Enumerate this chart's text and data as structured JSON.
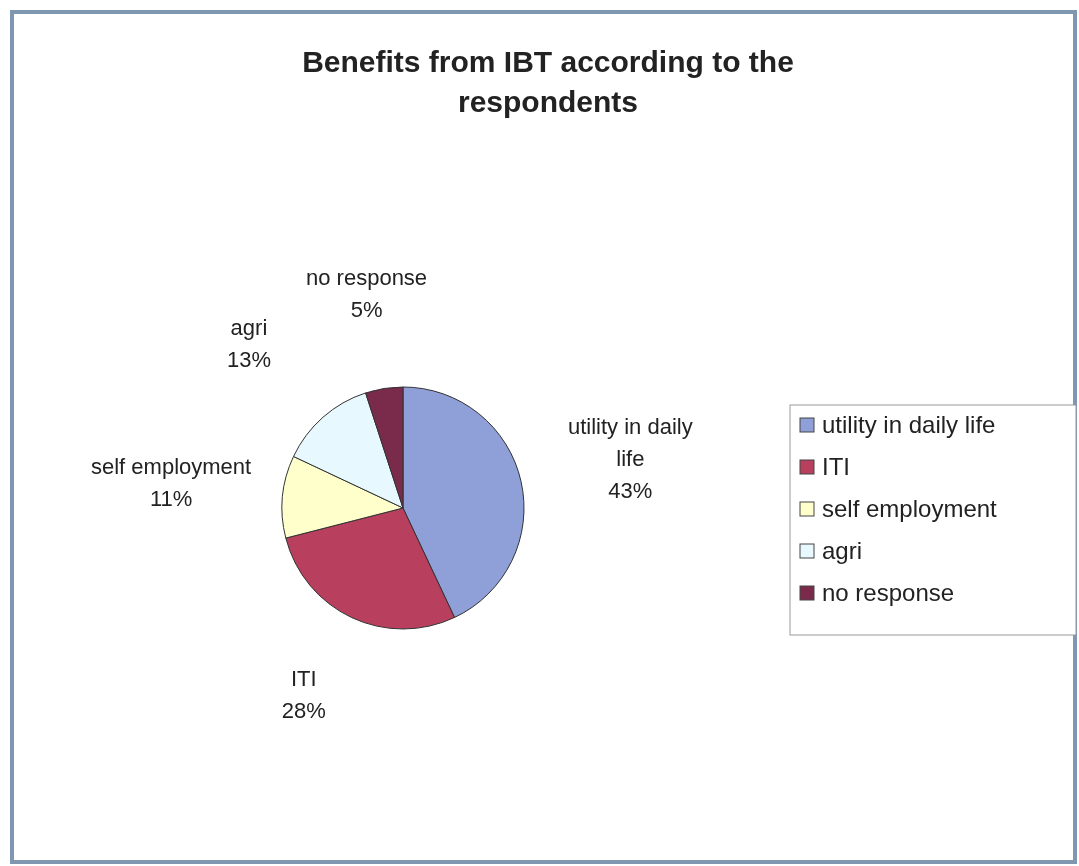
{
  "chart_data": {
    "type": "pie",
    "title": "Benefits from IBT according to the respondents",
    "categories": [
      "utility in daily life",
      "ITI",
      "self employment",
      "agri",
      "no response"
    ],
    "values": [
      43,
      28,
      11,
      13,
      5
    ],
    "colors": [
      "#8f9fd8",
      "#b8405e",
      "#ffffcc",
      "#e8f8ff",
      "#7a2a4a"
    ],
    "value_labels": [
      "43%",
      "28%",
      "11%",
      "13%",
      "5%"
    ],
    "legend": "right"
  }
}
